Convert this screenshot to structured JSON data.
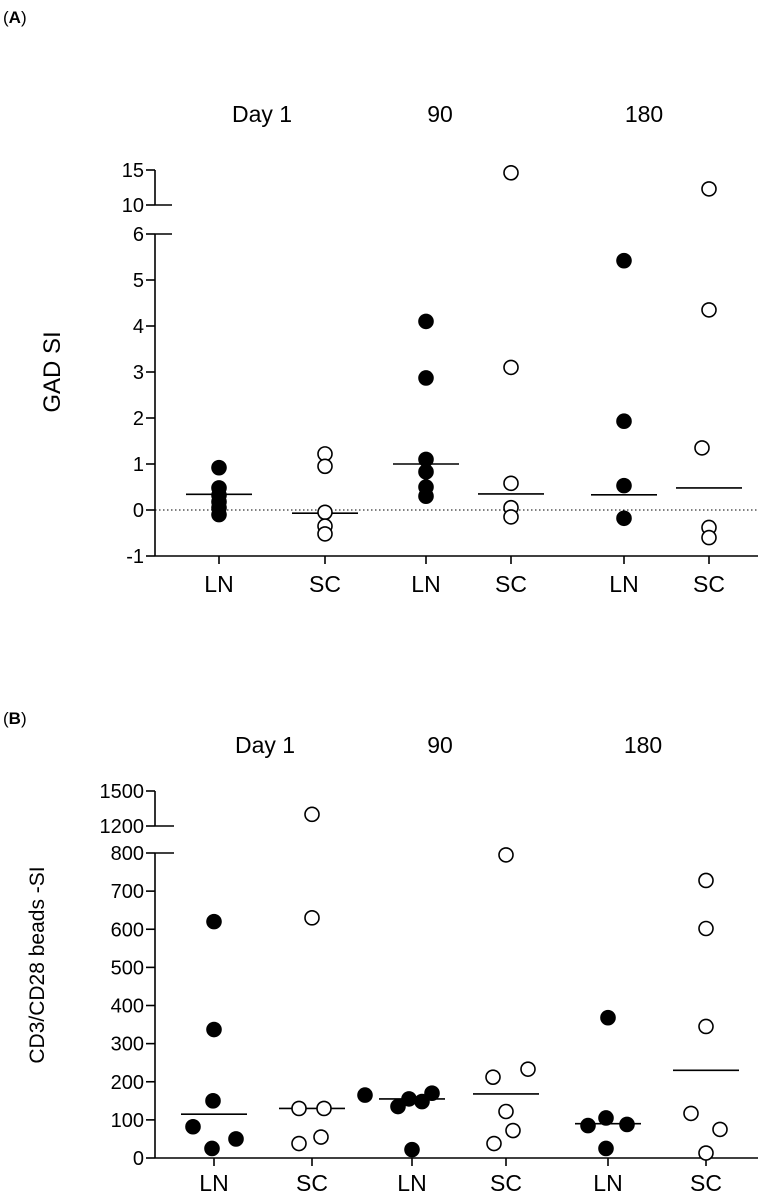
{
  "chart_data": [
    {
      "type": "scatter",
      "panel_label": "A",
      "group_labels": [
        "Day 1",
        "90",
        "180"
      ],
      "categories": [
        "LN",
        "SC",
        "LN",
        "SC",
        "LN",
        "SC"
      ],
      "ylabel": "GAD SI",
      "y_axis_break": {
        "lower_range": [
          -1,
          6
        ],
        "upper_range": [
          10,
          15
        ]
      },
      "y_ticks_lower": [
        -1,
        0,
        1,
        2,
        3,
        4,
        5,
        6
      ],
      "y_ticks_upper": [
        10,
        15
      ],
      "reference_line": {
        "y": 0,
        "style": "dotted"
      },
      "series": [
        {
          "category": "LN",
          "group": "Day 1",
          "marker": "filled",
          "values": [
            0.92,
            0.48,
            0.32,
            0.18,
            0.05,
            -0.1
          ],
          "mean": 0.34
        },
        {
          "category": "SC",
          "group": "Day 1",
          "marker": "open",
          "values": [
            1.22,
            0.95,
            -0.05,
            -0.35,
            -0.52
          ],
          "mean": -0.07
        },
        {
          "category": "LN",
          "group": "90",
          "marker": "filled",
          "values": [
            4.1,
            2.87,
            1.1,
            0.83,
            0.5,
            0.3
          ],
          "mean": 1.0
        },
        {
          "category": "SC",
          "group": "90",
          "marker": "open",
          "values": [
            14.6,
            3.1,
            0.58,
            0.05,
            -0.15
          ],
          "mean": 0.35
        },
        {
          "category": "LN",
          "group": "180",
          "marker": "filled",
          "values": [
            5.42,
            1.93,
            0.53,
            -0.18
          ],
          "mean": 0.33
        },
        {
          "category": "SC",
          "group": "180",
          "marker": "open",
          "values": [
            12.3,
            4.35,
            1.35,
            -0.38,
            -0.6
          ],
          "mean": 0.48
        }
      ]
    },
    {
      "type": "scatter",
      "panel_label": "B",
      "group_labels": [
        "Day 1",
        "90",
        "180"
      ],
      "categories": [
        "LN",
        "SC",
        "LN",
        "SC",
        "LN",
        "SC"
      ],
      "ylabel": "CD3/CD28 beads -SI",
      "y_axis_break": {
        "lower_range": [
          0,
          800
        ],
        "upper_range": [
          1200,
          1500
        ]
      },
      "y_ticks_lower": [
        0,
        100,
        200,
        300,
        400,
        500,
        600,
        700,
        800
      ],
      "y_ticks_upper": [
        1200,
        1500
      ],
      "series": [
        {
          "category": "LN",
          "group": "Day 1",
          "marker": "filled",
          "values": [
            620,
            337,
            150,
            82,
            50,
            25
          ],
          "mean": 115
        },
        {
          "category": "SC",
          "group": "Day 1",
          "marker": "open",
          "values": [
            1300,
            630,
            130,
            130,
            55,
            38
          ],
          "mean": 130
        },
        {
          "category": "LN",
          "group": "90",
          "marker": "filled",
          "values": [
            165,
            170,
            155,
            148,
            135,
            22
          ],
          "mean": 155
        },
        {
          "category": "SC",
          "group": "90",
          "marker": "open",
          "values": [
            795,
            233,
            212,
            122,
            72,
            38
          ],
          "mean": 168
        },
        {
          "category": "LN",
          "group": "180",
          "marker": "filled",
          "values": [
            368,
            105,
            85,
            88,
            25
          ],
          "mean": 90
        },
        {
          "category": "SC",
          "group": "180",
          "marker": "open",
          "values": [
            728,
            602,
            345,
            117,
            75,
            13
          ],
          "mean": 230
        }
      ]
    }
  ]
}
